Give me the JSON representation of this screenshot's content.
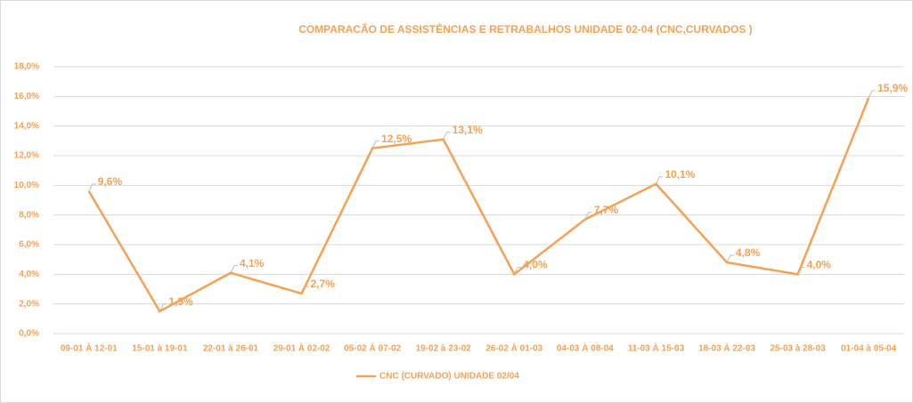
{
  "chart_data": {
    "type": "line",
    "title": "COMPARACÃO DE ASSISTÊNCIAS E RETRABALHOS UNIDADE 02-04  (CNC,CURVADOS )",
    "categories": [
      "09-01 À 12-01",
      "15-01 à 19-01",
      "22-01 à 26-01",
      "29-01 À   02-02",
      "05-02 À 07-02",
      "19-02 à 23-02",
      "26-02 À 01-03",
      "04-03 À 08-04",
      "11-03 À 15-03",
      "18-03 À 22-03",
      "25-03 à 28-03",
      "01-04 à 05-04"
    ],
    "series": [
      {
        "name": "CNC (CURVADO) UNIDADE 02/04",
        "color": "#f5a154",
        "values": [
          9.6,
          1.5,
          4.1,
          2.7,
          12.5,
          13.1,
          4.0,
          7.7,
          10.1,
          4.8,
          4.0,
          15.9
        ],
        "value_labels": [
          "9,6%",
          "1,5%",
          "4,1%",
          "2,7%",
          "12,5%",
          "13,1%",
          "4,0%",
          "7,7%",
          "10,1%",
          "4,8%",
          "4,0%",
          "15,9%"
        ]
      }
    ],
    "ylim": [
      0,
      18
    ],
    "yticks": [
      {
        "value": 0,
        "label": "0,0%"
      },
      {
        "value": 2,
        "label": "2,0%"
      },
      {
        "value": 4,
        "label": "4,0%"
      },
      {
        "value": 6,
        "label": "6,0%"
      },
      {
        "value": 8,
        "label": "8,0%"
      },
      {
        "value": 10,
        "label": "10,0%"
      },
      {
        "value": 12,
        "label": "12,0%"
      },
      {
        "value": 14,
        "label": "14,0%"
      },
      {
        "value": 16,
        "label": "16,0%"
      },
      {
        "value": 18,
        "label": "18,0%"
      }
    ],
    "grid": true,
    "legend": "bottom"
  }
}
